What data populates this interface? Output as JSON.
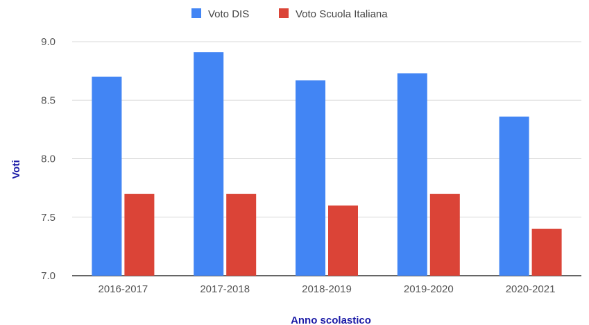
{
  "chart_data": {
    "type": "bar",
    "title": "",
    "xlabel": "Anno scolastico",
    "ylabel": "Voti",
    "categories": [
      "2016-2017",
      "2017-2018",
      "2018-2019",
      "2019-2020",
      "2020-2021"
    ],
    "series": [
      {
        "name": "Voto DIS",
        "color": "#4285f4",
        "values": [
          8.7,
          8.91,
          8.67,
          8.73,
          8.36
        ]
      },
      {
        "name": "Voto Scuola Italiana",
        "color": "#db4437",
        "values": [
          7.7,
          7.7,
          7.6,
          7.7,
          7.4
        ]
      }
    ],
    "ylim": [
      7.0,
      9.0
    ],
    "yticks": [
      "7.0",
      "7.5",
      "8.0",
      "8.5",
      "9.0"
    ],
    "grid": true,
    "legend_position": "top"
  }
}
